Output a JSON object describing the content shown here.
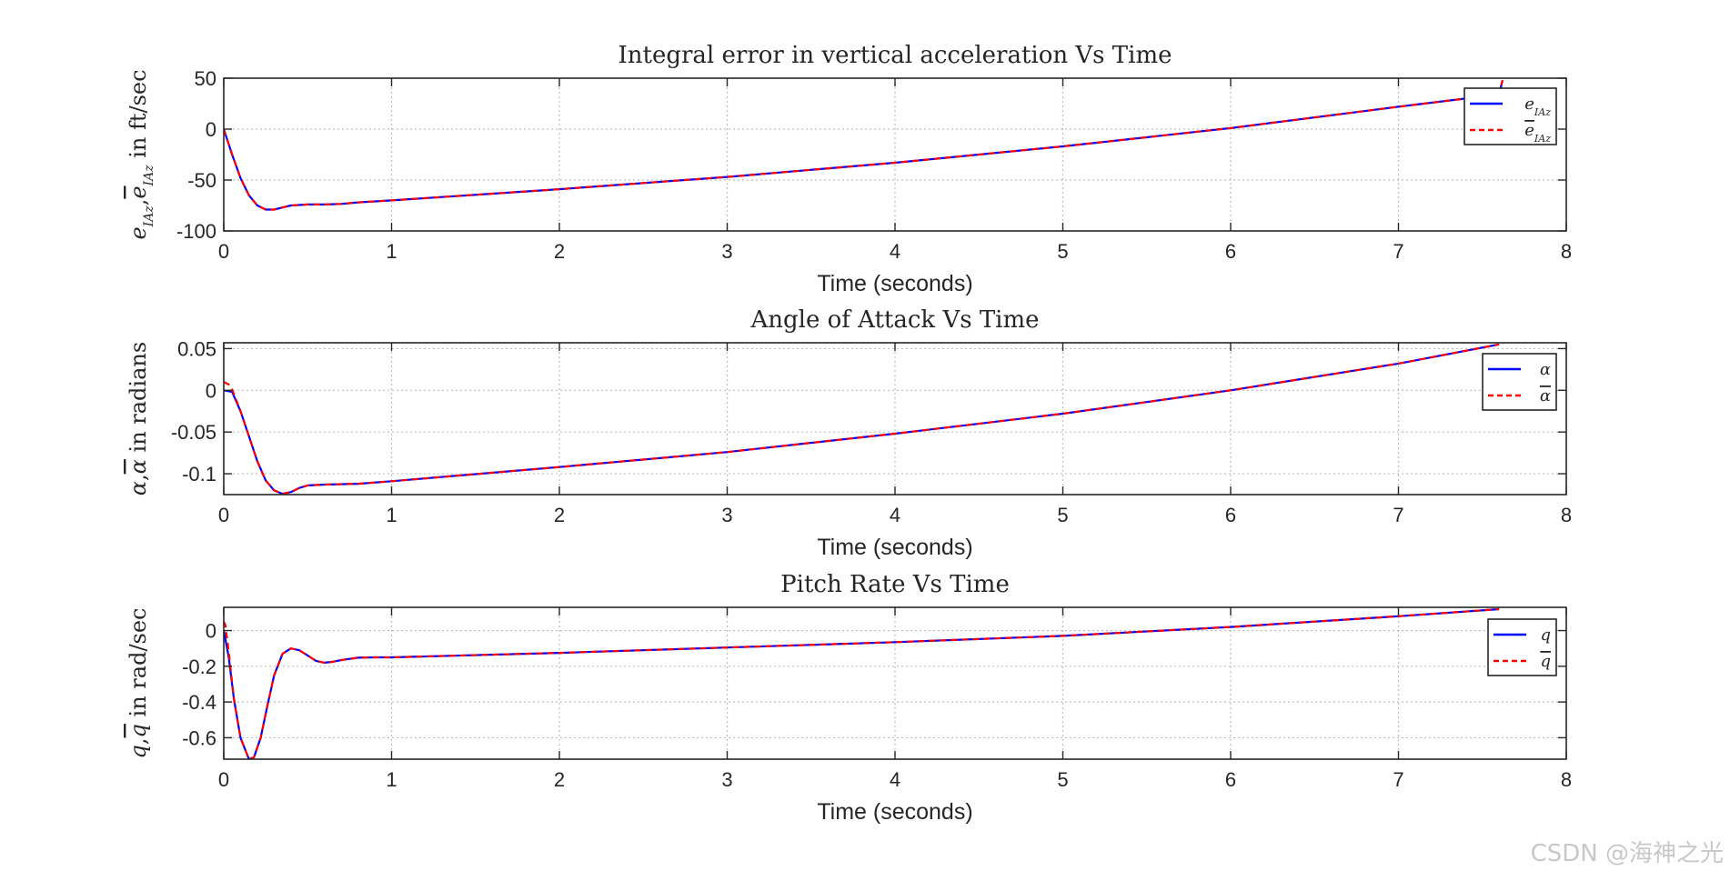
{
  "watermark": "CSDN @海神之光",
  "colors": {
    "actual": "#0000ff",
    "estimate": "#ff0000",
    "axis": "#262626",
    "grid": "#bdbdbd"
  },
  "chart_data": [
    {
      "type": "line",
      "title": "Integral error in vertical acceleration Vs Time",
      "xlabel": "Time (seconds)",
      "ylabel": "e_{I_{Az}}, ê_{I_{Az}} in ft/sec",
      "ylabel_parts": {
        "sym1": "e",
        "sub1": "IAz",
        "comma": ",",
        "sym2": "e",
        "sub2": "IAz",
        "text": " in ft/sec"
      },
      "xlim": [
        0,
        8
      ],
      "ylim": [
        -100,
        50
      ],
      "xticks": [
        0,
        1,
        2,
        3,
        4,
        5,
        6,
        7,
        8
      ],
      "yticks": [
        50,
        0,
        -50,
        -100
      ],
      "ytick_labels": [
        "50",
        "0",
        "-50",
        "-100"
      ],
      "grid": true,
      "legend_position": "top-right",
      "series": [
        {
          "name": "e_{I_{Az}}",
          "legend_sym": "e",
          "legend_sub": "IAz",
          "style": "solid",
          "x": [
            0,
            0.05,
            0.1,
            0.15,
            0.2,
            0.25,
            0.3,
            0.35,
            0.4,
            0.5,
            0.6,
            0.7,
            0.8,
            1,
            2,
            3,
            4,
            5,
            6,
            7,
            7.6,
            7.62
          ],
          "y": [
            0,
            -25,
            -48,
            -65,
            -75,
            -79,
            -79,
            -77,
            -75,
            -74,
            -74,
            -73.5,
            -72,
            -70,
            -59,
            -47,
            -33,
            -17,
            1,
            22,
            34,
            48
          ]
        },
        {
          "name": "ê_{I_{Az}}",
          "legend_sym": "e",
          "legend_sub": "IAz",
          "style": "dashed",
          "x": [
            0,
            0.05,
            0.1,
            0.15,
            0.2,
            0.25,
            0.3,
            0.35,
            0.4,
            0.5,
            0.6,
            0.7,
            0.8,
            1,
            2,
            3,
            4,
            5,
            6,
            7,
            7.6,
            7.62
          ],
          "y": [
            0,
            -25,
            -48,
            -65,
            -75,
            -79,
            -79,
            -77,
            -75,
            -74,
            -74,
            -73.5,
            -72,
            -70,
            -59,
            -47,
            -33,
            -17,
            1,
            22,
            34,
            48
          ]
        }
      ]
    },
    {
      "type": "line",
      "title": "Angle of Attack Vs Time",
      "xlabel": "Time (seconds)",
      "ylabel": "α, α̂ in radians",
      "ylabel_parts": {
        "sym1": "α",
        "comma": ",",
        "sym2": "α",
        "text": " in radians"
      },
      "xlim": [
        0,
        8
      ],
      "ylim": [
        -0.125,
        0.057
      ],
      "xticks": [
        0,
        1,
        2,
        3,
        4,
        5,
        6,
        7,
        8
      ],
      "yticks": [
        0.05,
        0,
        -0.05,
        -0.1
      ],
      "ytick_labels": [
        "0.05",
        "0",
        "-0.05",
        "-0.1"
      ],
      "grid": true,
      "legend_position": "top-right",
      "series": [
        {
          "name": "α",
          "legend_sym": "α",
          "style": "solid",
          "x": [
            0,
            0.05,
            0.1,
            0.15,
            0.2,
            0.25,
            0.3,
            0.35,
            0.4,
            0.45,
            0.5,
            0.6,
            0.8,
            1,
            2,
            3,
            4,
            5,
            6,
            7,
            7.6
          ],
          "y": [
            0,
            -0.002,
            -0.025,
            -0.055,
            -0.085,
            -0.108,
            -0.12,
            -0.124,
            -0.122,
            -0.117,
            -0.114,
            -0.113,
            -0.112,
            -0.109,
            -0.092,
            -0.074,
            -0.052,
            -0.028,
            0,
            0.032,
            0.055
          ]
        },
        {
          "name": "α̂",
          "legend_sym": "α",
          "style": "dashed",
          "x": [
            0,
            0.03,
            0.05,
            0.1,
            0.15,
            0.2,
            0.25,
            0.3,
            0.35,
            0.4,
            0.45,
            0.5,
            0.6,
            0.8,
            1,
            2,
            3,
            4,
            5,
            6,
            7,
            7.6
          ],
          "y": [
            0.01,
            0.007,
            0.001,
            -0.025,
            -0.055,
            -0.085,
            -0.108,
            -0.12,
            -0.124,
            -0.122,
            -0.117,
            -0.114,
            -0.113,
            -0.112,
            -0.109,
            -0.092,
            -0.074,
            -0.052,
            -0.028,
            0,
            0.032,
            0.055
          ]
        }
      ]
    },
    {
      "type": "line",
      "title": "Pitch Rate Vs Time",
      "xlabel": "Time (seconds)",
      "ylabel": "q, q̂ in rad/sec",
      "ylabel_parts": {
        "sym1": "q",
        "comma": ",",
        "sym2": "q",
        "text": " in rad/sec"
      },
      "xlim": [
        0,
        8
      ],
      "ylim": [
        -0.72,
        0.13
      ],
      "xticks": [
        0,
        1,
        2,
        3,
        4,
        5,
        6,
        7,
        8
      ],
      "yticks": [
        0,
        -0.2,
        -0.4,
        -0.6
      ],
      "ytick_labels": [
        "0",
        "-0.2",
        "-0.4",
        "-0.6"
      ],
      "grid": true,
      "legend_position": "top-right",
      "series": [
        {
          "name": "q",
          "legend_sym": "q",
          "style": "solid",
          "x": [
            0,
            0.03,
            0.06,
            0.1,
            0.15,
            0.18,
            0.22,
            0.26,
            0.3,
            0.35,
            0.4,
            0.45,
            0.5,
            0.55,
            0.6,
            0.65,
            0.7,
            0.8,
            0.9,
            1,
            2,
            3,
            4,
            5,
            6,
            7,
            7.6
          ],
          "y": [
            0,
            -0.15,
            -0.38,
            -0.6,
            -0.72,
            -0.71,
            -0.6,
            -0.42,
            -0.25,
            -0.13,
            -0.1,
            -0.11,
            -0.14,
            -0.17,
            -0.18,
            -0.175,
            -0.165,
            -0.152,
            -0.15,
            -0.15,
            -0.125,
            -0.095,
            -0.065,
            -0.03,
            0.02,
            0.08,
            0.12
          ]
        },
        {
          "name": "q̂",
          "legend_sym": "q",
          "style": "dashed",
          "x": [
            0,
            0.01,
            0.03,
            0.06,
            0.1,
            0.15,
            0.18,
            0.22,
            0.26,
            0.3,
            0.35,
            0.4,
            0.45,
            0.5,
            0.55,
            0.6,
            0.65,
            0.7,
            0.8,
            0.9,
            1,
            2,
            3,
            4,
            5,
            6,
            7,
            7.6
          ],
          "y": [
            0.05,
            0.03,
            -0.12,
            -0.38,
            -0.6,
            -0.72,
            -0.71,
            -0.6,
            -0.42,
            -0.25,
            -0.13,
            -0.1,
            -0.11,
            -0.14,
            -0.17,
            -0.18,
            -0.175,
            -0.165,
            -0.152,
            -0.15,
            -0.15,
            -0.125,
            -0.095,
            -0.065,
            -0.03,
            0.02,
            0.08,
            0.12
          ]
        }
      ]
    }
  ]
}
